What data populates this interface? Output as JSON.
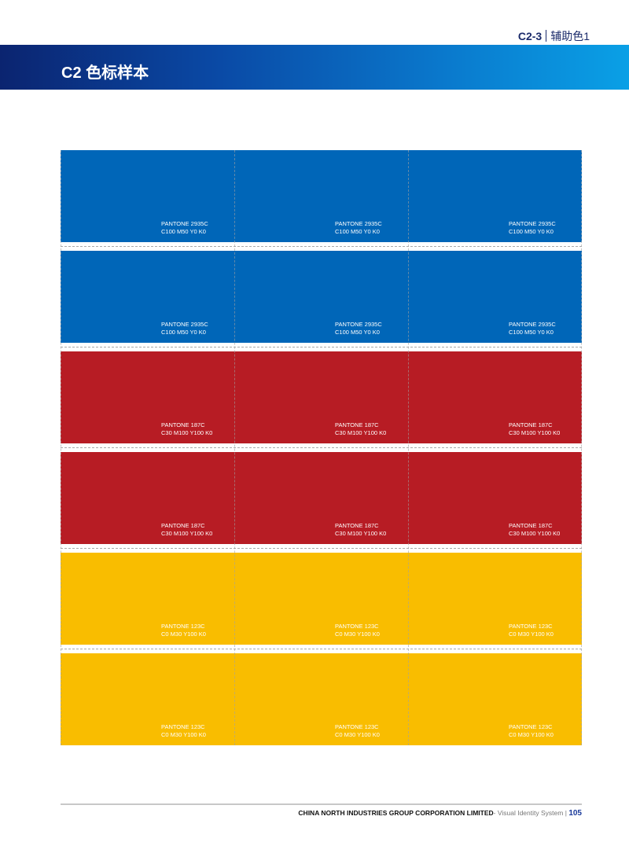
{
  "header": {
    "section_code": "C2-3",
    "section_name": "辅助色1",
    "title": "C2 色标样本",
    "band_colors": [
      "#0b2470",
      "#0aa0e6"
    ]
  },
  "swatch_rows": [
    {
      "pantone": "PANTONE 2935C",
      "cmyk": "C100 M50 Y0 K0",
      "color": "#0066b8"
    },
    {
      "pantone": "PANTONE 2935C",
      "cmyk": "C100 M50 Y0 K0",
      "color": "#0066b8"
    },
    {
      "pantone": "PANTONE 187C",
      "cmyk": "C30 M100 Y100 K0",
      "color": "#b71c24"
    },
    {
      "pantone": "PANTONE 187C",
      "cmyk": "C30 M100 Y100 K0",
      "color": "#b71c24"
    },
    {
      "pantone": "PANTONE 123C",
      "cmyk": "C0 M30 Y100 K0",
      "color": "#f9bd00"
    },
    {
      "pantone": "PANTONE 123C",
      "cmyk": "C0 M30 Y100 K0",
      "color": "#f9bd00"
    }
  ],
  "footer": {
    "company": "CHINA NORTH INDUSTRIES GROUP CORPORATION LIMITED",
    "system": "- Visual Identity System",
    "separator": "|",
    "page": "105"
  }
}
